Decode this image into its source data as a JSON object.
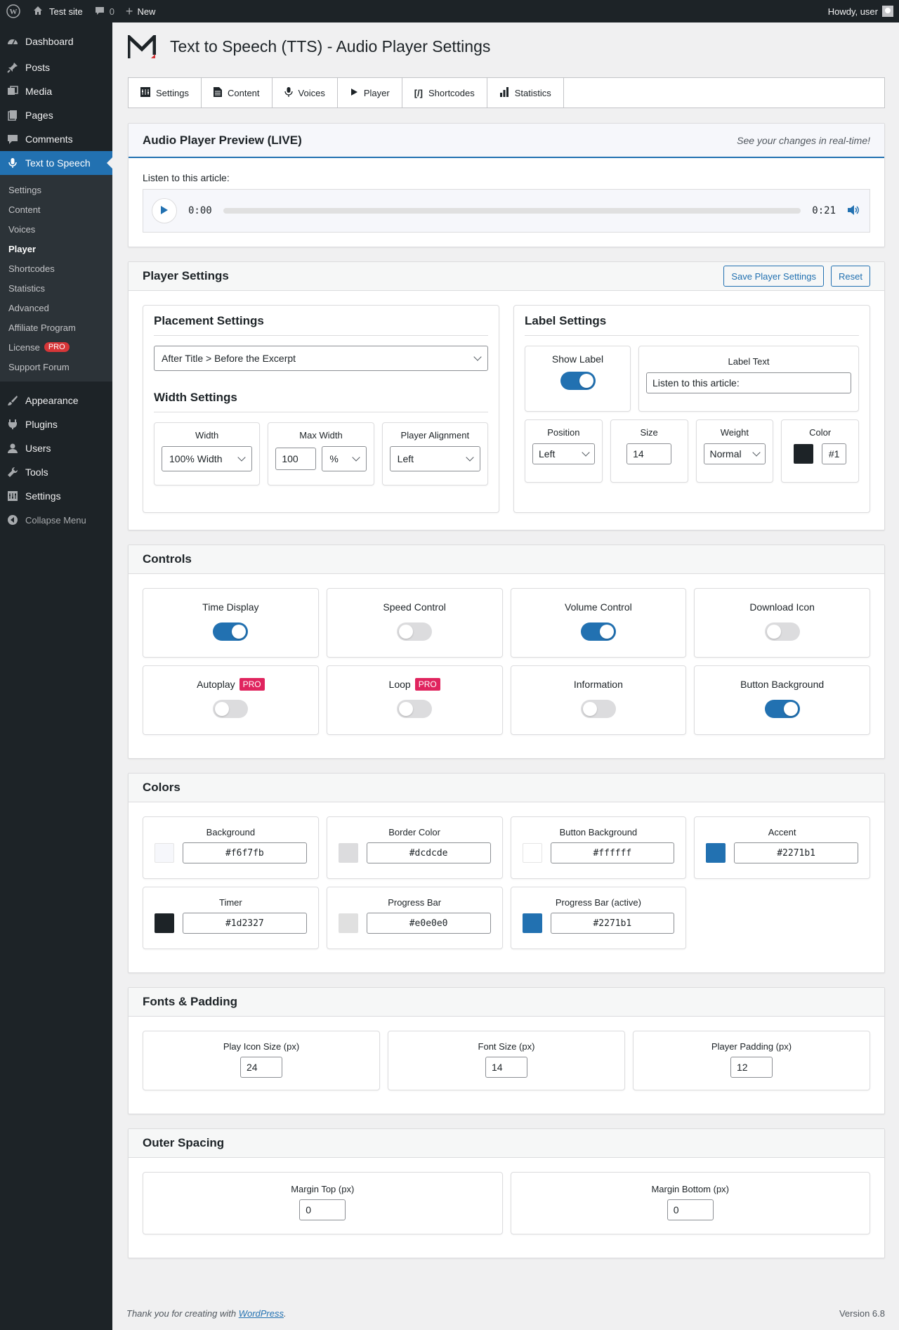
{
  "adminbar": {
    "site_name": "Test site",
    "comments_count": "0",
    "new_label": "New",
    "howdy": "Howdy, user"
  },
  "sidebar": {
    "items": [
      {
        "label": "Dashboard",
        "icon": "dashboard-icon"
      },
      {
        "label": "Posts",
        "icon": "pin-icon"
      },
      {
        "label": "Media",
        "icon": "media-icon"
      },
      {
        "label": "Pages",
        "icon": "pages-icon"
      },
      {
        "label": "Comments",
        "icon": "comment-icon"
      },
      {
        "label": "Text to Speech",
        "icon": "microphone-icon"
      }
    ],
    "submenu": [
      "Settings",
      "Content",
      "Voices",
      "Player",
      "Shortcodes",
      "Statistics",
      "Advanced",
      "Affiliate Program",
      "License",
      "Support Forum"
    ],
    "license_badge": "PRO",
    "lower_items": [
      {
        "label": "Appearance",
        "icon": "brush-icon"
      },
      {
        "label": "Plugins",
        "icon": "plugin-icon"
      },
      {
        "label": "Users",
        "icon": "user-icon"
      },
      {
        "label": "Tools",
        "icon": "wrench-icon"
      },
      {
        "label": "Settings",
        "icon": "settings-icon"
      }
    ],
    "collapse": "Collapse Menu"
  },
  "page": {
    "title": "Text to Speech (TTS) - Audio Player Settings"
  },
  "tabs": [
    "Settings",
    "Content",
    "Voices",
    "Player",
    "Shortcodes",
    "Statistics"
  ],
  "preview": {
    "title": "Audio Player Preview (LIVE)",
    "note": "See your changes in real-time!",
    "listen_label": "Listen to this article:",
    "time_start": "0:00",
    "time_end": "0:21",
    "progress": 0
  },
  "player_settings": {
    "title": "Player Settings",
    "save_button": "Save Player Settings",
    "reset_button": "Reset",
    "placement": {
      "title": "Placement Settings",
      "value": "After Title > Before the Excerpt"
    },
    "width": {
      "title": "Width Settings",
      "width_label": "Width",
      "width_value": "100% Width",
      "max_width_label": "Max Width",
      "max_width_value": "100",
      "max_width_unit": "%",
      "alignment_label": "Player Alignment",
      "alignment_value": "Left"
    },
    "label": {
      "title": "Label Settings",
      "show_label": "Show Label",
      "show_label_on": true,
      "label_text_label": "Label Text",
      "label_text_value": "Listen to this article:",
      "position_label": "Position",
      "position_value": "Left",
      "size_label": "Size",
      "size_value": "14",
      "weight_label": "Weight",
      "weight_value": "Normal",
      "color_label": "Color",
      "color_value": "#1",
      "color_swatch": "#1d2327"
    }
  },
  "controls": {
    "title": "Controls",
    "items": [
      {
        "label": "Time Display",
        "on": true,
        "pro": ""
      },
      {
        "label": "Speed Control",
        "on": false,
        "pro": ""
      },
      {
        "label": "Volume Control",
        "on": true,
        "pro": ""
      },
      {
        "label": "Download Icon",
        "on": false,
        "pro": ""
      },
      {
        "label": "Autoplay",
        "on": false,
        "pro": "PRO"
      },
      {
        "label": "Loop",
        "on": false,
        "pro": "PRO"
      },
      {
        "label": "Information",
        "on": false,
        "pro": ""
      },
      {
        "label": "Button Background",
        "on": true,
        "pro": ""
      }
    ]
  },
  "colors": {
    "title": "Colors",
    "items": [
      {
        "label": "Background",
        "value": "#f6f7fb"
      },
      {
        "label": "Border Color",
        "value": "#dcdcde"
      },
      {
        "label": "Button Background",
        "value": "#ffffff"
      },
      {
        "label": "Accent",
        "value": "#2271b1"
      },
      {
        "label": "Timer",
        "value": "#1d2327"
      },
      {
        "label": "Progress Bar",
        "value": "#e0e0e0"
      },
      {
        "label": "Progress Bar (active)",
        "value": "#2271b1"
      }
    ]
  },
  "fonts": {
    "title": "Fonts & Padding",
    "items": [
      {
        "label": "Play Icon Size (px)",
        "value": "24"
      },
      {
        "label": "Font Size (px)",
        "value": "14"
      },
      {
        "label": "Player Padding (px)",
        "value": "12"
      }
    ]
  },
  "spacing": {
    "title": "Outer Spacing",
    "items": [
      {
        "label": "Margin Top (px)",
        "value": "0"
      },
      {
        "label": "Margin Bottom (px)",
        "value": "0"
      }
    ]
  },
  "footer": {
    "thanks_prefix": "Thank you for creating with ",
    "link": "WordPress",
    "thanks_suffix": ".",
    "version": "Version 6.8"
  },
  "theme": {
    "accent": "#2271b1",
    "admin_dark": "#1d2327",
    "pro_color": "#e0245e"
  }
}
